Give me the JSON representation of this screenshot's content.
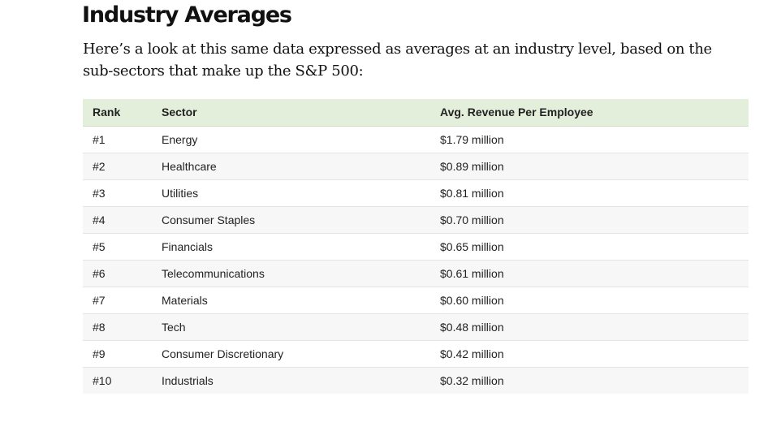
{
  "heading": "Industry Averages",
  "intro": "Here’s a look at this same data expressed as averages at an industry level, based on the sub-sectors that make up the S&P 500:",
  "table": {
    "headers": [
      "Rank",
      "Sector",
      "Avg. Revenue Per Employee"
    ],
    "rows": [
      [
        "#1",
        "Energy",
        "$1.79 million"
      ],
      [
        "#2",
        "Healthcare",
        "$0.89 million"
      ],
      [
        "#3",
        "Utilities",
        "$0.81 million"
      ],
      [
        "#4",
        "Consumer Staples",
        "$0.70 million"
      ],
      [
        "#5",
        "Financials",
        "$0.65 million"
      ],
      [
        "#6",
        "Telecommunications",
        "$0.61 million"
      ],
      [
        "#7",
        "Materials",
        "$0.60 million"
      ],
      [
        "#8",
        "Tech",
        "$0.48 million"
      ],
      [
        "#9",
        "Consumer Discretionary",
        "$0.42 million"
      ],
      [
        "#10",
        "Industrials",
        "$0.32 million"
      ]
    ]
  },
  "colors": {
    "header_bg": "#e4efdb",
    "stripe_bg": "#f7f7f7",
    "text": "#222222"
  }
}
